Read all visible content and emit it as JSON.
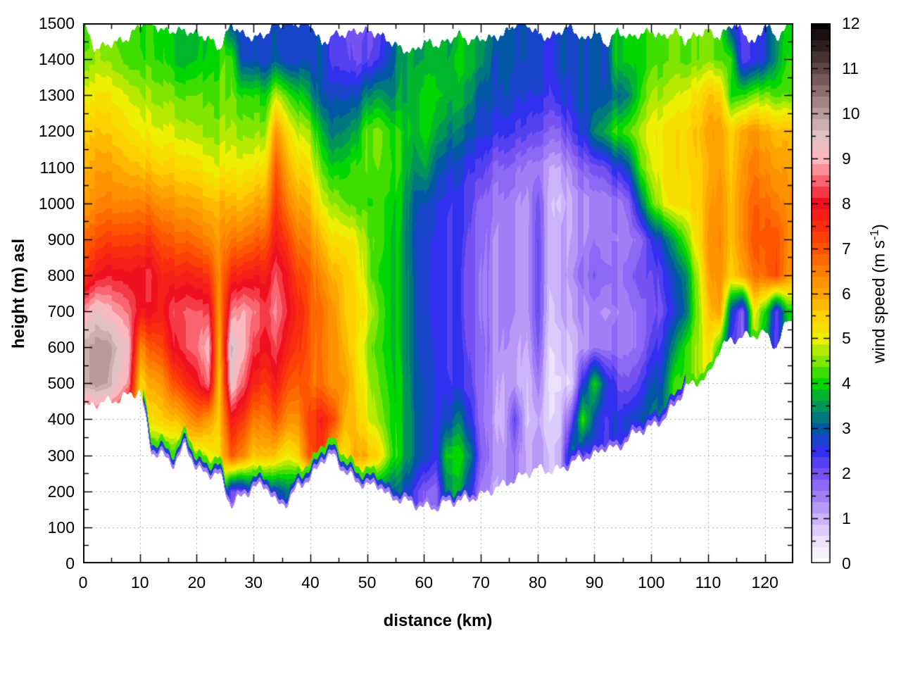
{
  "chart_data": {
    "type": "heatmap",
    "title": "",
    "xlabel": "distance (km)",
    "ylabel": "height (m) asl",
    "x_range": [
      0,
      125
    ],
    "y_range": [
      0,
      1500
    ],
    "x_ticks": [
      0,
      10,
      20,
      30,
      40,
      50,
      60,
      70,
      80,
      90,
      100,
      110,
      120
    ],
    "x_minor_step": 5,
    "y_ticks": [
      0,
      100,
      200,
      300,
      400,
      500,
      600,
      700,
      800,
      900,
      1000,
      1100,
      1200,
      1300,
      1400,
      1500
    ],
    "y_minor_step": 50,
    "grid_on": true,
    "colorbar": {
      "label_pre": "wind speed (m s",
      "label_sup": "-1",
      "label_post": ")",
      "range": [
        0,
        12
      ],
      "ticks": [
        0,
        1,
        2,
        3,
        4,
        5,
        6,
        7,
        8,
        9,
        10,
        11,
        12
      ],
      "minor_step": 0.5
    },
    "palette_stops": [
      {
        "v": 0,
        "c": "#ffffff"
      },
      {
        "v": 0.5,
        "c": "#ece2fc"
      },
      {
        "v": 1,
        "c": "#cdb4fa"
      },
      {
        "v": 1.5,
        "c": "#a27ef6"
      },
      {
        "v": 2,
        "c": "#7652f2"
      },
      {
        "v": 2.5,
        "c": "#3030ee"
      },
      {
        "v": 3,
        "c": "#0058a4"
      },
      {
        "v": 3.5,
        "c": "#00965a"
      },
      {
        "v": 4,
        "c": "#00d600"
      },
      {
        "v": 4.5,
        "c": "#80e600"
      },
      {
        "v": 5,
        "c": "#eeee00"
      },
      {
        "v": 5.5,
        "c": "#ffd000"
      },
      {
        "v": 6,
        "c": "#ffa400"
      },
      {
        "v": 6.5,
        "c": "#ff8000"
      },
      {
        "v": 7,
        "c": "#ff5400"
      },
      {
        "v": 7.5,
        "c": "#fa2c10"
      },
      {
        "v": 8,
        "c": "#f01020"
      },
      {
        "v": 8.5,
        "c": "#fa646e"
      },
      {
        "v": 9,
        "c": "#fcb8be"
      },
      {
        "v": 9.5,
        "c": "#e0c2c6"
      },
      {
        "v": 10,
        "c": "#b89a9a"
      },
      {
        "v": 10.5,
        "c": "#8c6e6e"
      },
      {
        "v": 11,
        "c": "#5e4646"
      },
      {
        "v": 11.5,
        "c": "#2e1e20"
      },
      {
        "v": 12,
        "c": "#000000"
      }
    ],
    "contour_step": 0.25,
    "grid_km0": 0,
    "grid_km_step": 2,
    "grid_heights_desc": [
      1500,
      1400,
      1300,
      1200,
      1100,
      1000,
      900,
      800,
      700,
      600,
      500,
      400,
      300,
      200,
      100,
      0
    ],
    "terrain_m": [
      430,
      445,
      450,
      455,
      470,
      480,
      310,
      300,
      275,
      330,
      260,
      250,
      245,
      160,
      190,
      210,
      220,
      165,
      170,
      220,
      235,
      290,
      300,
      255,
      230,
      215,
      220,
      180,
      180,
      165,
      158,
      155,
      170,
      175,
      180,
      190,
      205,
      220,
      235,
      250,
      265,
      258,
      262,
      280,
      295,
      300,
      327,
      317,
      350,
      370,
      380,
      400,
      440,
      490,
      505,
      520,
      600,
      620,
      630,
      635,
      640,
      600,
      680
    ],
    "top_m": [
      1500,
      1430,
      1440,
      1450,
      1460,
      1500,
      1500,
      1480,
      1480,
      1480,
      1470,
      1460,
      1430,
      1500,
      1470,
      1460,
      1470,
      1500,
      1500,
      1500,
      1500,
      1440,
      1470,
      1470,
      1480,
      1480,
      1470,
      1450,
      1430,
      1420,
      1450,
      1440,
      1450,
      1470,
      1450,
      1460,
      1460,
      1470,
      1500,
      1500,
      1470,
      1460,
      1480,
      1490,
      1450,
      1480,
      1440,
      1480,
      1460,
      1470,
      1480,
      1460,
      1480,
      1450,
      1470,
      1480,
      1460,
      1500,
      1480,
      1440,
      1500,
      1460,
      1490
    ],
    "values": [
      [
        4.2,
        4.5,
        4.4,
        4.3,
        4.2,
        4.2,
        4.2,
        4.0,
        3.7,
        3.6,
        3.7,
        3.9,
        4.1,
        2.8,
        2.9,
        2.8,
        2.7,
        2.8,
        2.8,
        2.8,
        2.8,
        2.8,
        2.2,
        2.1,
        1.9,
        2.0,
        2.2,
        2.8,
        3.4,
        3.5,
        3.6,
        3.6,
        3.6,
        3.7,
        3.7,
        3.6,
        3.2,
        3.0,
        2.8,
        2.8,
        2.7,
        2.6,
        2.7,
        2.8,
        2.8,
        2.9,
        2.9,
        4.0,
        4.0,
        4.0,
        4.2,
        4.3,
        4.4,
        4.3,
        4.4,
        4.5,
        4.4,
        2.6,
        2.2,
        2.4,
        2.8,
        3.6,
        4.0
      ],
      [
        4.6,
        4.6,
        4.5,
        4.4,
        4.3,
        4.3,
        4.2,
        4.1,
        3.8,
        3.7,
        3.8,
        4.0,
        4.2,
        4.3,
        2.9,
        2.8,
        2.7,
        3.0,
        2.8,
        2.8,
        2.8,
        2.8,
        2.2,
        2.2,
        2.0,
        2.2,
        2.4,
        3.0,
        3.5,
        3.6,
        3.6,
        3.7,
        3.7,
        3.8,
        3.8,
        3.6,
        3.0,
        2.9,
        2.8,
        2.8,
        2.7,
        2.6,
        2.8,
        2.8,
        2.8,
        2.9,
        2.9,
        4.0,
        4.0,
        4.0,
        4.2,
        4.3,
        4.4,
        4.3,
        4.4,
        4.5,
        4.4,
        4.2,
        2.2,
        2.4,
        2.8,
        3.6,
        4.2
      ],
      [
        5.2,
        5.1,
        5.1,
        5.0,
        4.9,
        4.8,
        4.6,
        4.5,
        4.4,
        4.3,
        4.3,
        4.4,
        4.3,
        4.4,
        4.2,
        4.1,
        4.0,
        4.8,
        4.4,
        4.0,
        3.6,
        2.8,
        2.8,
        2.8,
        2.8,
        3.4,
        3.6,
        3.4,
        3.6,
        3.7,
        4.0,
        3.9,
        3.8,
        3.7,
        3.5,
        3.0,
        2.9,
        2.8,
        2.7,
        2.6,
        2.5,
        2.4,
        2.6,
        2.8,
        2.9,
        2.9,
        3.0,
        3.2,
        3.4,
        4.2,
        4.6,
        4.7,
        4.8,
        5.0,
        5.2,
        5.6,
        5.6,
        4.0,
        4.2,
        4.4,
        4.6,
        4.4,
        4.4
      ],
      [
        5.7,
        5.6,
        5.5,
        5.4,
        5.3,
        5.2,
        5.0,
        4.9,
        4.8,
        4.7,
        4.6,
        4.6,
        4.6,
        4.7,
        4.6,
        4.5,
        4.6,
        6.2,
        5.4,
        4.8,
        4.6,
        3.6,
        3.2,
        3.4,
        3.6,
        4.4,
        4.5,
        4.2,
        4.0,
        3.7,
        4.0,
        3.6,
        3.4,
        3.2,
        3.0,
        2.8,
        2.6,
        2.4,
        2.3,
        2.2,
        2.0,
        1.9,
        1.8,
        2.4,
        2.6,
        3.4,
        3.8,
        4.2,
        4.4,
        4.8,
        5.0,
        5.2,
        5.3,
        5.4,
        5.6,
        6.0,
        6.2,
        5.4,
        6.0,
        6.2,
        6.0,
        5.8,
        5.8
      ],
      [
        6.0,
        6.0,
        6.0,
        5.9,
        5.8,
        5.8,
        5.6,
        5.4,
        5.4,
        5.3,
        5.2,
        5.1,
        5.0,
        5.1,
        5.1,
        5.1,
        5.3,
        7.0,
        6.0,
        5.4,
        5.2,
        4.2,
        3.9,
        4.0,
        4.2,
        4.3,
        4.4,
        4.3,
        4.0,
        3.4,
        3.6,
        3.0,
        2.8,
        2.6,
        2.4,
        2.4,
        1.9,
        1.8,
        1.7,
        1.5,
        1.4,
        1.2,
        1.1,
        1.6,
        1.8,
        2.0,
        2.2,
        2.6,
        3.0,
        4.4,
        4.8,
        5.2,
        5.3,
        5.4,
        5.5,
        5.8,
        6.2,
        5.5,
        6.2,
        6.5,
        6.4,
        6.2,
        6.1
      ],
      [
        6.3,
        6.3,
        6.4,
        6.4,
        6.5,
        6.6,
        6.5,
        6.2,
        6.1,
        6.0,
        5.9,
        5.8,
        5.8,
        5.8,
        5.8,
        5.9,
        6.1,
        7.4,
        6.6,
        6.0,
        5.8,
        4.8,
        4.6,
        4.4,
        4.2,
        4.2,
        4.2,
        4.1,
        3.8,
        3.0,
        2.8,
        2.6,
        2.5,
        2.4,
        2.2,
        1.9,
        1.6,
        1.5,
        1.4,
        1.2,
        1.9,
        1.0,
        0.8,
        1.2,
        1.3,
        1.4,
        1.5,
        1.6,
        1.8,
        3.2,
        4.2,
        5.0,
        5.2,
        5.3,
        5.4,
        6.0,
        6.4,
        5.6,
        6.4,
        6.8,
        6.8,
        6.6,
        6.3
      ],
      [
        7.0,
        7.0,
        7.2,
        7.2,
        7.3,
        7.4,
        7.4,
        7.0,
        6.8,
        6.8,
        6.6,
        6.5,
        6.2,
        6.6,
        6.7,
        6.8,
        7.0,
        7.8,
        7.4,
        6.6,
        6.4,
        5.6,
        5.2,
        5.2,
        5.0,
        4.5,
        4.3,
        4.0,
        3.7,
        2.9,
        2.6,
        2.5,
        2.4,
        2.3,
        2.1,
        1.8,
        1.5,
        1.4,
        1.3,
        1.2,
        2.0,
        1.0,
        1.1,
        1.3,
        1.4,
        1.6,
        1.5,
        1.5,
        1.6,
        1.8,
        2.4,
        3.0,
        3.6,
        4.4,
        5.2,
        6.2,
        6.5,
        5.6,
        6.4,
        7.0,
        7.1,
        7.2,
        6.4
      ],
      [
        7.6,
        7.8,
        8.0,
        8.0,
        8.0,
        8.2,
        8.2,
        7.6,
        7.6,
        7.7,
        7.5,
        7.5,
        6.4,
        7.6,
        7.8,
        7.8,
        7.8,
        8.4,
        8.0,
        7.2,
        6.9,
        6.2,
        5.8,
        5.6,
        5.2,
        4.6,
        4.1,
        4.0,
        3.7,
        3.0,
        2.6,
        2.4,
        2.4,
        2.3,
        2.0,
        1.7,
        1.5,
        1.4,
        1.3,
        1.2,
        2.0,
        1.0,
        1.1,
        1.4,
        1.6,
        1.9,
        1.8,
        1.7,
        1.8,
        2.2,
        2.0,
        2.4,
        2.8,
        3.4,
        4.6,
        6.0,
        6.4,
        5.4,
        6.0,
        6.6,
        6.8,
        7.3,
        6.2
      ],
      [
        9.0,
        9.3,
        9.0,
        8.8,
        8.6,
        8.0,
        8.0,
        7.8,
        8.3,
        8.4,
        8.3,
        8.4,
        6.2,
        8.6,
        9.0,
        8.6,
        8.3,
        8.7,
        8.2,
        7.6,
        7.0,
        6.6,
        6.2,
        5.6,
        5.4,
        5.0,
        4.4,
        4.0,
        3.7,
        3.0,
        2.6,
        2.4,
        2.4,
        2.3,
        2.0,
        1.7,
        1.5,
        1.4,
        1.3,
        1.2,
        2.0,
        0.9,
        1.0,
        1.2,
        1.3,
        1.5,
        1.4,
        1.5,
        1.6,
        1.8,
        1.9,
        2.2,
        2.6,
        3.2,
        4.4,
        5.6,
        6.2,
        2.8,
        1.8,
        5.0,
        4.2,
        2.2,
        4.0
      ],
      [
        10,
        10,
        10,
        9.6,
        9.2,
        6.5,
        7.0,
        7.2,
        8.0,
        8.3,
        8.5,
        9.2,
        5.8,
        9.7,
        9.2,
        8.2,
        8.0,
        8.3,
        7.8,
        7.4,
        6.9,
        6.5,
        6.3,
        5.8,
        5.2,
        4.6,
        4.2,
        4.0,
        3.7,
        3.0,
        2.7,
        2.5,
        2.4,
        2.3,
        2.1,
        1.8,
        1.5,
        1.3,
        1.2,
        1.0,
        1.8,
        0.7,
        0.8,
        1.0,
        1.2,
        1.6,
        1.6,
        1.6,
        1.6,
        1.8,
        2.2,
        2.6,
        3.4,
        4.2,
        4.6,
        5.2,
        4.2,
        2.2,
        1.8,
        4.6,
        3.6,
        2.2,
        3.8
      ],
      [
        10,
        10,
        9.8,
        9.3,
        8.8,
        5.5,
        6.0,
        6.2,
        7.0,
        7.5,
        7.8,
        8.7,
        5.6,
        9.3,
        8.6,
        7.6,
        7.4,
        7.8,
        7.2,
        7.0,
        6.8,
        6.6,
        6.2,
        6.2,
        5.4,
        4.8,
        4.4,
        4.1,
        3.8,
        3.1,
        2.8,
        2.5,
        2.5,
        2.4,
        2.2,
        1.8,
        1.4,
        1.0,
        1.2,
        0.8,
        1.4,
        0.6,
        0.6,
        0.8,
        2.6,
        4.0,
        2.8,
        2.2,
        2.0,
        2.4,
        2.8,
        3.0,
        4.2,
        4.2,
        4.6,
        5.0,
        4.0,
        3.0,
        2.0,
        4.0,
        4.0,
        3.0,
        4.0
      ],
      [
        8,
        8,
        8,
        8,
        7,
        5,
        5.3,
        5.5,
        5.6,
        6.0,
        6.5,
        6.2,
        5.6,
        7.8,
        7.5,
        6.5,
        6.6,
        7.0,
        6.4,
        6.4,
        7.4,
        7.6,
        7.2,
        5.8,
        5.6,
        5.0,
        4.6,
        4.2,
        3.8,
        3.2,
        2.8,
        2.5,
        2.8,
        3.2,
        2.6,
        1.8,
        1.3,
        0.9,
        2.2,
        0.8,
        1.0,
        0.7,
        0.8,
        2.2,
        4.2,
        2.8,
        2.4,
        2.6,
        2.8,
        3.0,
        3.2,
        3.4,
        4.2,
        4.2,
        4.4,
        4.6,
        4.0,
        3.0,
        2.0,
        4.0,
        4.0,
        3.0,
        4.0
      ],
      [
        8,
        8,
        8,
        8,
        7,
        5,
        4.0,
        4.0,
        4.0,
        5.0,
        4.5,
        5.0,
        5.3,
        7.0,
        6.5,
        5.5,
        5.8,
        5.5,
        5.2,
        5.6,
        7.2,
        7.4,
        5.5,
        5.2,
        6.0,
        5.8,
        5.4,
        4.4,
        3.8,
        3.2,
        2.8,
        2.4,
        4.0,
        4.0,
        3.4,
        2.0,
        1.4,
        1.2,
        1.6,
        1.0,
        1.2,
        0.9,
        1.0,
        3.6,
        2.2,
        2.6,
        2.4,
        2.6,
        2.8,
        3.0,
        3.2,
        3.4,
        4.0,
        4.0,
        4.4,
        4.6,
        4.0,
        3.0,
        2.0,
        4.0,
        4.0,
        3.0,
        4.0
      ],
      [
        8,
        8,
        8,
        8,
        7,
        5,
        4,
        4,
        4,
        5,
        4.5,
        5,
        5.3,
        2.0,
        2.2,
        3.0,
        3.0,
        2.8,
        3.4,
        3.0,
        3.0,
        4.0,
        4.0,
        4.0,
        4.0,
        3.4,
        3.2,
        3.2,
        3.0,
        2.4,
        1.8,
        1.6,
        3.4,
        3.6,
        2.6,
        1.6,
        1.2,
        1.2,
        1.6,
        1.0,
        1.2,
        0.9,
        1.0,
        3.6,
        2.2,
        2.6,
        2.4,
        2.6,
        2.8,
        3.0,
        3.2,
        3.4,
        4.0,
        4.0,
        4.4,
        4.6,
        4.0,
        3.0,
        2.0,
        4.0,
        4.0,
        3.0,
        4.0
      ],
      [
        8,
        8,
        8,
        8,
        7,
        5,
        4,
        4,
        4,
        5,
        4.5,
        5,
        5.3,
        2.0,
        2.2,
        3.0,
        3.0,
        2.8,
        3.4,
        3.0,
        3.0,
        4.0,
        4.0,
        4.0,
        4.0,
        3.4,
        3.2,
        3.2,
        3.0,
        2.4,
        1.8,
        1.6,
        3.4,
        3.6,
        2.6,
        1.6,
        1.2,
        1.2,
        1.6,
        1.0,
        1.2,
        0.9,
        1.0,
        3.6,
        2.2,
        2.6,
        2.4,
        2.6,
        2.8,
        3.0,
        3.2,
        3.4,
        4.0,
        4.0,
        4.4,
        4.6,
        4.0,
        3.0,
        2.0,
        4.0,
        4.0,
        3.0,
        4.0
      ],
      [
        8,
        8,
        8,
        8,
        7,
        5,
        4,
        4,
        4,
        5,
        4.5,
        5,
        5.3,
        2.0,
        2.2,
        3.0,
        3.0,
        2.8,
        3.4,
        3.0,
        3.0,
        4.0,
        4.0,
        4.0,
        4.0,
        3.4,
        3.2,
        3.2,
        3.0,
        2.4,
        1.8,
        1.6,
        3.4,
        3.6,
        2.6,
        1.6,
        1.2,
        1.2,
        1.6,
        1.0,
        1.2,
        0.9,
        1.0,
        3.6,
        2.2,
        2.6,
        2.4,
        2.6,
        2.8,
        3.0,
        3.2,
        3.4,
        4.0,
        4.0,
        4.4,
        4.6,
        4.0,
        3.0,
        2.0,
        4.0,
        4.0,
        3.0,
        4.0
      ]
    ]
  }
}
